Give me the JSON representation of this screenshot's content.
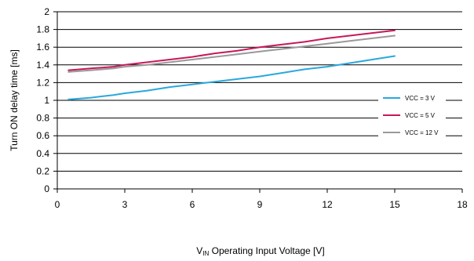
{
  "chart_data": {
    "type": "line",
    "title": "",
    "xlabel": {
      "main": "V",
      "sub": "IN",
      "rest": " Operating Input Voltage  [V]"
    },
    "ylabel": "Turn ON delay time [ms]",
    "xlim": [
      0,
      18
    ],
    "ylim": [
      0,
      2
    ],
    "x_ticks": [
      0,
      3,
      6,
      9,
      12,
      15,
      18
    ],
    "x_tick_labels": [
      "0",
      "3",
      "6",
      "9",
      "12",
      "15",
      "18"
    ],
    "y_ticks": [
      0,
      0.2,
      0.4,
      0.6,
      0.8,
      1,
      1.2,
      1.4,
      1.6,
      1.8,
      2
    ],
    "y_tick_labels": [
      "0",
      "0.2",
      "0.4",
      "0.6",
      "0.8",
      "1",
      "1.2",
      "1.4",
      "1.6",
      "1.8",
      "2"
    ],
    "grid": "horizontal",
    "legend_position": "right",
    "series": [
      {
        "name": "VCC = 3 V",
        "color": "#2aa8dc",
        "x": [
          0.5,
          1.5,
          2.5,
          3,
          4,
          5,
          6,
          7,
          8,
          9,
          10,
          11,
          12,
          13,
          14,
          15
        ],
        "y": [
          1.01,
          1.03,
          1.06,
          1.08,
          1.11,
          1.15,
          1.18,
          1.21,
          1.24,
          1.27,
          1.31,
          1.35,
          1.38,
          1.42,
          1.46,
          1.5
        ]
      },
      {
        "name": "VCC = 5 V",
        "color": "#c8185a",
        "x": [
          0.5,
          1.5,
          2.5,
          3,
          4,
          5,
          6,
          7,
          8,
          9,
          10,
          11,
          12,
          13,
          14,
          15
        ],
        "y": [
          1.34,
          1.36,
          1.38,
          1.4,
          1.43,
          1.46,
          1.49,
          1.53,
          1.56,
          1.6,
          1.63,
          1.66,
          1.7,
          1.73,
          1.76,
          1.79
        ]
      },
      {
        "name": "VCC = 12 V",
        "color": "#999999",
        "x": [
          0.5,
          1.5,
          2.5,
          3,
          4,
          5,
          6,
          7,
          8,
          9,
          10,
          11,
          12,
          13,
          14,
          15
        ],
        "y": [
          1.32,
          1.34,
          1.36,
          1.38,
          1.4,
          1.43,
          1.46,
          1.49,
          1.52,
          1.55,
          1.58,
          1.61,
          1.64,
          1.67,
          1.7,
          1.73
        ]
      }
    ]
  }
}
